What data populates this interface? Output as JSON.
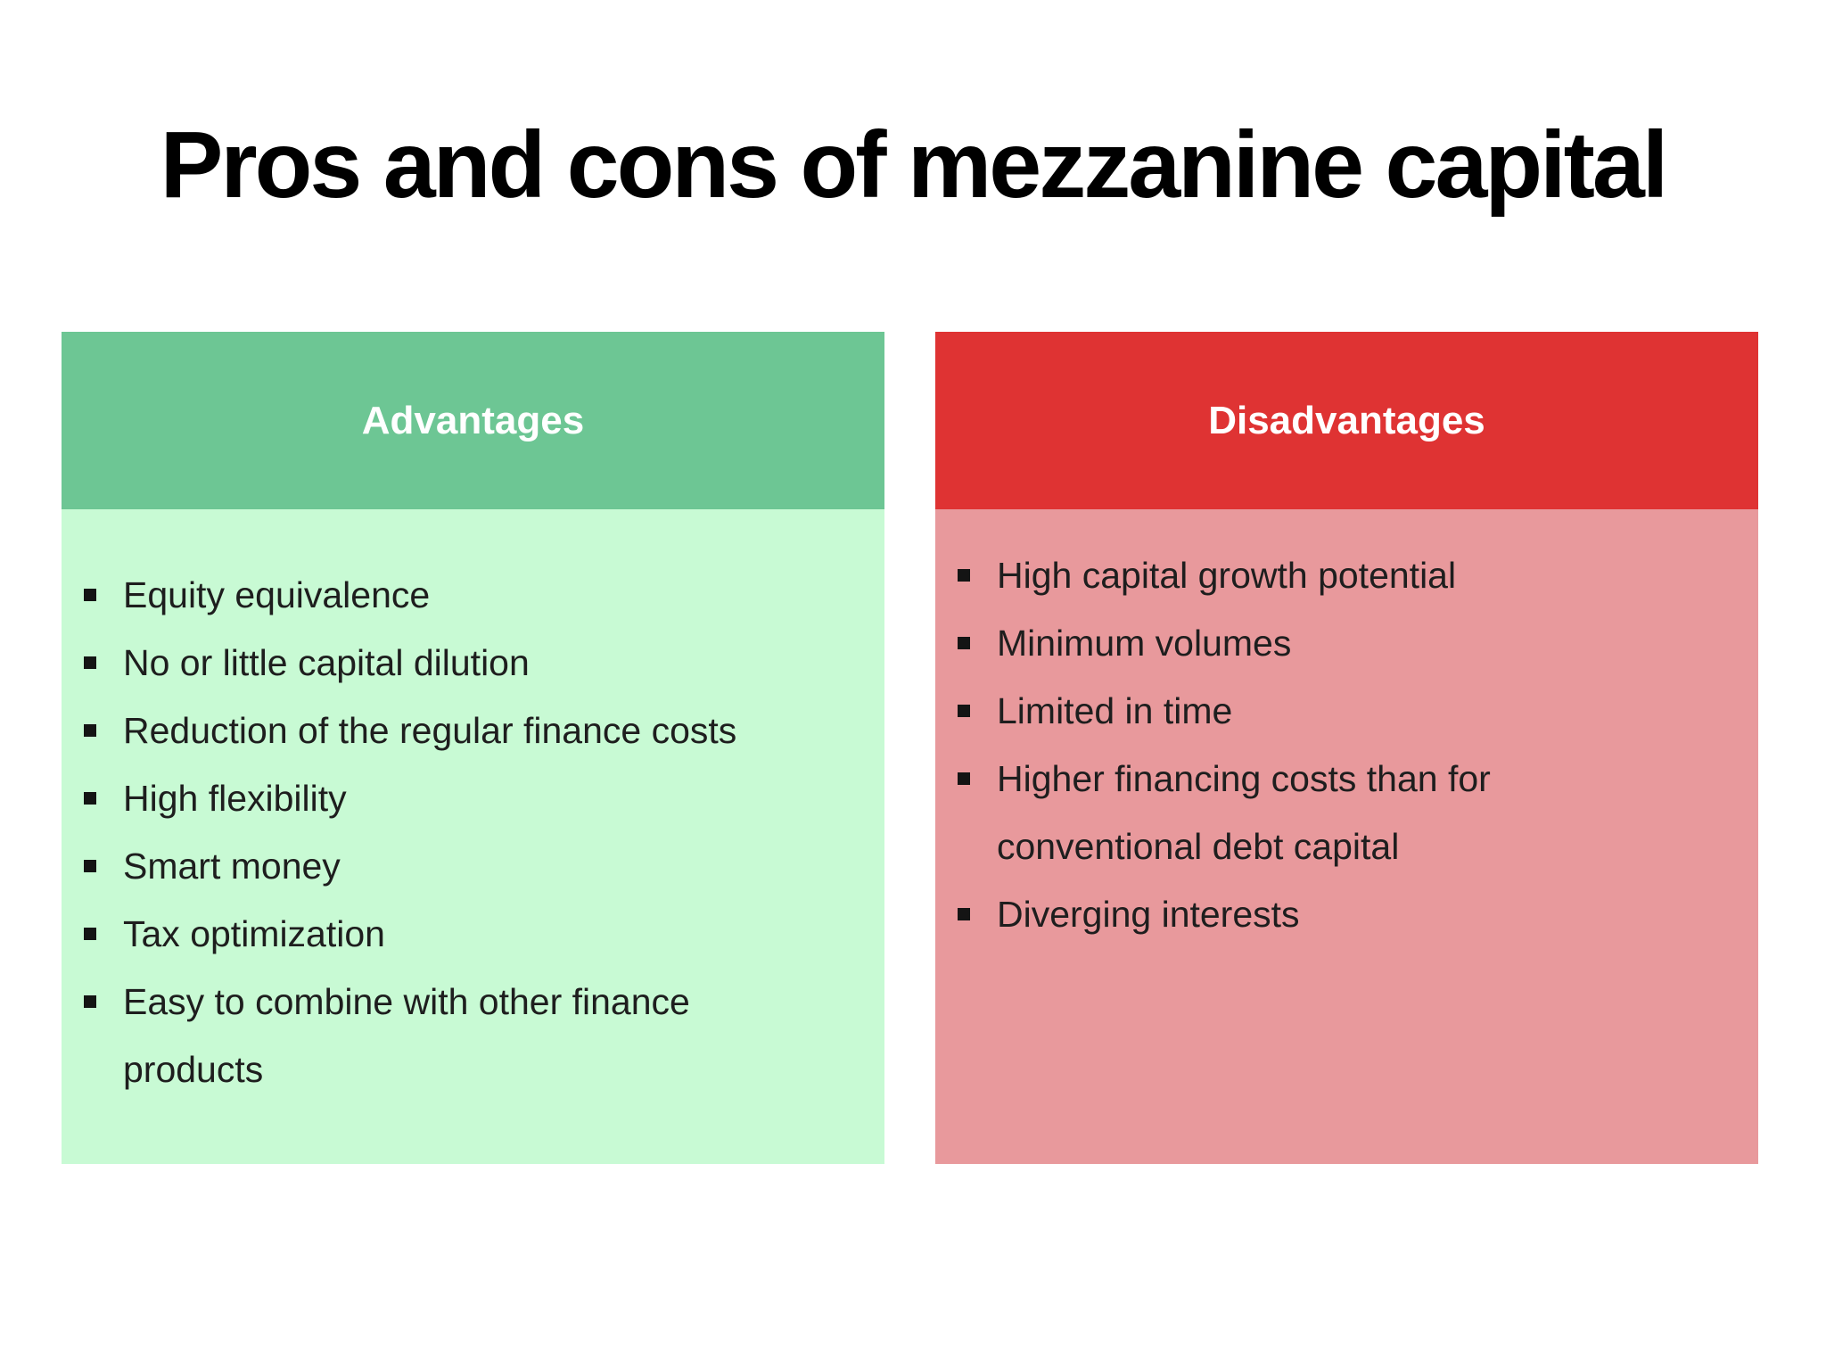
{
  "title": "Pros and cons of mezzanine capital",
  "colors": {
    "background": "#ffffff",
    "title_text": "#000000",
    "header_text": "#ffffff",
    "body_text": "#1e1e1e",
    "bullet": "#141414",
    "advantages_header_bg": "#6dc694",
    "advantages_body_bg": "#c8fad4",
    "disadvantages_header_bg": "#df3333",
    "disadvantages_body_bg": "#e8999c"
  },
  "columns": [
    {
      "id": "advantages",
      "header": "Advantages",
      "items": [
        "Equity equivalence",
        "No or little capital dilution",
        "Reduction of the regular finance costs",
        "High flexibility",
        "Smart money",
        "Tax optimization",
        "Easy to combine with other finance products"
      ]
    },
    {
      "id": "disadvantages",
      "header": "Disadvantages",
      "items": [
        "High capital growth potential",
        "Minimum volumes",
        "Limited in time",
        "Higher financing costs than for conventional debt capital",
        "Diverging interests"
      ]
    }
  ]
}
